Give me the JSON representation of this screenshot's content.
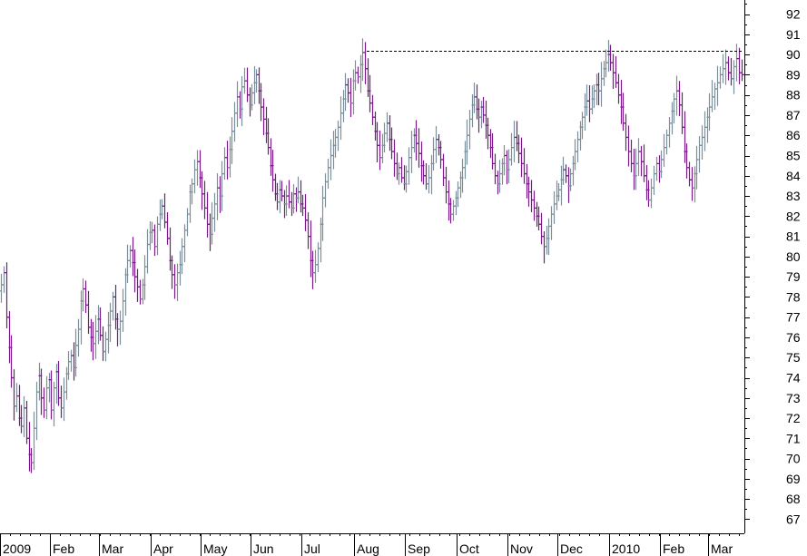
{
  "chart_data": {
    "type": "ohlc-bar",
    "colors": {
      "up": "#7a8f9a",
      "down": "#7a1a8a",
      "axis": "#000000",
      "resistance": "#000000",
      "background": "#ffffff"
    },
    "y_axis": {
      "position": "right",
      "ylim": [
        66.3,
        92.7
      ],
      "ticks": [
        67,
        68,
        69,
        70,
        71,
        72,
        73,
        74,
        75,
        76,
        77,
        78,
        79,
        80,
        81,
        82,
        83,
        84,
        85,
        86,
        87,
        88,
        89,
        90,
        91,
        92
      ]
    },
    "x_axis": {
      "labels": [
        "2009",
        "Feb",
        "Mar",
        "Apr",
        "May",
        "Jun",
        "Jul",
        "Aug",
        "Sep",
        "Oct",
        "Nov",
        "Dec",
        "2010",
        "Feb",
        "Mar"
      ]
    },
    "resistance_line": {
      "value": 90.2,
      "style": "dashed",
      "from": "Aug",
      "to": "Mar"
    },
    "months": [
      {
        "label": "2009",
        "closes": [
          78.6,
          79.2,
          77.0,
          75.5,
          74.0,
          72.6,
          73.1,
          72.0,
          71.6,
          72.5,
          71.0,
          70.2,
          69.8,
          71.5,
          73.3,
          74.1,
          73.0,
          72.4,
          73.5,
          73.9
        ]
      },
      {
        "label": "Feb",
        "closes": [
          72.4,
          73.5,
          74.3,
          73.0,
          72.5,
          73.3,
          74.2,
          74.8,
          75.1,
          74.5,
          75.6,
          76.4,
          77.8,
          78.4,
          77.6,
          76.5,
          76.0,
          75.7,
          76.3,
          76.9
        ]
      },
      {
        "label": "Mar",
        "closes": [
          76.1,
          75.3,
          75.9,
          76.6,
          77.3,
          78.0,
          76.9,
          76.4,
          76.8,
          77.8,
          79.1,
          79.8,
          80.3,
          79.7,
          79.0,
          78.5,
          77.9,
          78.6,
          79.5,
          80.6,
          81.2
        ]
      },
      {
        "label": "Apr",
        "closes": [
          81.3,
          80.5,
          81.6,
          82.1,
          82.5,
          81.7,
          80.9,
          79.8,
          79.1,
          78.6,
          79.2,
          79.6,
          80.5,
          81.3,
          82.1,
          83.2,
          83.6,
          84.3,
          84.7,
          83.9
        ]
      },
      {
        "label": "May",
        "closes": [
          83.1,
          82.4,
          81.6,
          81.1,
          81.9,
          82.6,
          83.4,
          83.0,
          84.1,
          84.9,
          84.4,
          85.3,
          86.2,
          87.1,
          87.9,
          87.3,
          88.4,
          88.7,
          88.0,
          87.5
        ]
      },
      {
        "label": "Jun",
        "closes": [
          88.1,
          88.6,
          89.0,
          88.2,
          87.4,
          86.8,
          86.1,
          85.4,
          84.5,
          83.8,
          83.1,
          82.7,
          83.3,
          83.0,
          82.6,
          83.0,
          82.7,
          82.4,
          83.1,
          82.9,
          83.2,
          82.6
        ]
      },
      {
        "label": "Jul",
        "closes": [
          82.4,
          81.8,
          81.0,
          79.8,
          79.2,
          79.6,
          80.4,
          81.6,
          82.9,
          83.7,
          84.4,
          85.0,
          85.5,
          85.9,
          86.4,
          87.1,
          87.8,
          88.5,
          88.1,
          87.6,
          88.7
        ]
      },
      {
        "label": "Aug",
        "closes": [
          89.1,
          88.9,
          89.5,
          90.1,
          89.3,
          88.2,
          87.6,
          86.9,
          86.2,
          85.5,
          84.9,
          85.5,
          86.1,
          86.6,
          85.8,
          85.2,
          84.6,
          84.1,
          84.4,
          83.9,
          83.6
        ]
      },
      {
        "label": "Sep",
        "closes": [
          84.2,
          84.9,
          85.4,
          86.0,
          85.6,
          85.1,
          84.5,
          84.0,
          83.6,
          83.9,
          84.6,
          85.3,
          85.8,
          85.4,
          84.8,
          83.9,
          83.2,
          82.6,
          82.1,
          82.5,
          82.9
        ]
      },
      {
        "label": "Oct",
        "closes": [
          83.4,
          83.9,
          84.4,
          85.2,
          86.0,
          86.8,
          87.5,
          87.9,
          87.3,
          86.9,
          87.4,
          87.0,
          86.5,
          86.0,
          85.4,
          84.6,
          84.0,
          83.6,
          84.1,
          84.6,
          85.0,
          84.3
        ]
      },
      {
        "label": "Nov",
        "closes": [
          84.8,
          85.4,
          85.9,
          85.6,
          85.1,
          84.6,
          84.1,
          83.6,
          83.2,
          82.8,
          82.4,
          82.0,
          81.6,
          81.0,
          80.5,
          80.9,
          81.5,
          82.1,
          82.6,
          83.0
        ]
      },
      {
        "label": "Dec",
        "closes": [
          83.3,
          83.8,
          84.3,
          84.0,
          83.5,
          84.1,
          84.6,
          85.2,
          85.8,
          86.4,
          86.9,
          87.4,
          87.7,
          87.3,
          87.8,
          88.2,
          88.5,
          88.2,
          88.8,
          89.3,
          89.6,
          90.0
        ]
      },
      {
        "label": "2010",
        "closes": [
          89.6,
          89.1,
          88.6,
          88.0,
          87.4,
          86.6,
          85.9,
          85.2,
          84.6,
          84.0,
          84.6,
          85.2,
          84.7,
          84.0,
          83.3,
          82.8,
          83.4,
          84.1,
          84.6,
          84.2
        ]
      },
      {
        "label": "Feb",
        "closes": [
          84.8,
          85.4,
          86.0,
          86.6,
          87.2,
          87.8,
          88.2,
          87.5,
          86.4,
          85.2,
          84.4,
          83.8,
          83.4,
          84.1,
          84.8,
          85.5,
          85.9,
          86.4,
          86.9
        ]
      },
      {
        "label": "Mar",
        "closes": [
          87.4,
          87.9,
          88.3,
          88.6,
          89.0,
          89.3,
          89.6,
          89.1,
          88.8,
          89.4,
          89.8,
          89.1,
          89.0
        ]
      }
    ]
  }
}
